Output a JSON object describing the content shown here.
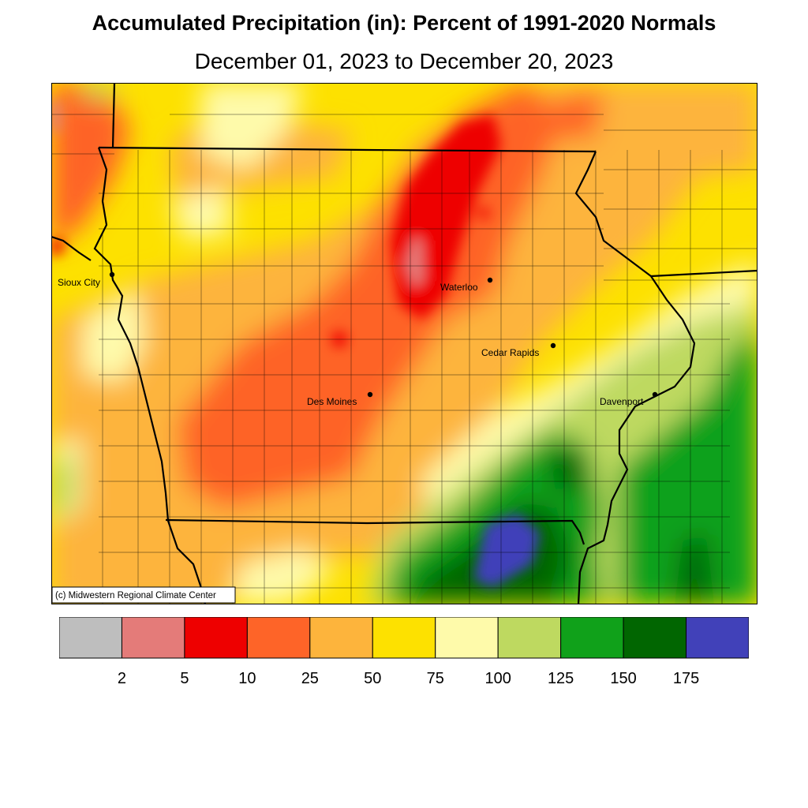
{
  "title": "Accumulated Precipitation (in): Percent of 1991-2020 Normals",
  "subtitle": "December 01, 2023 to December 20, 2023",
  "credit": "(c) Midwestern Regional Climate Center",
  "cities": [
    {
      "name": "Sioux City"
    },
    {
      "name": "Waterloo"
    },
    {
      "name": "Cedar Rapids"
    },
    {
      "name": "Des Moines"
    },
    {
      "name": "Davenport"
    }
  ],
  "legend": {
    "colors": [
      "#bebebe",
      "#e47b79",
      "#ee0000",
      "#fe6428",
      "#fdb43c",
      "#fde100",
      "#fefaaa",
      "#bed960",
      "#10a11a",
      "#016601",
      "#4141b9"
    ],
    "ticks": [
      "2",
      "5",
      "10",
      "25",
      "50",
      "75",
      "100",
      "125",
      "150",
      "175"
    ]
  }
}
